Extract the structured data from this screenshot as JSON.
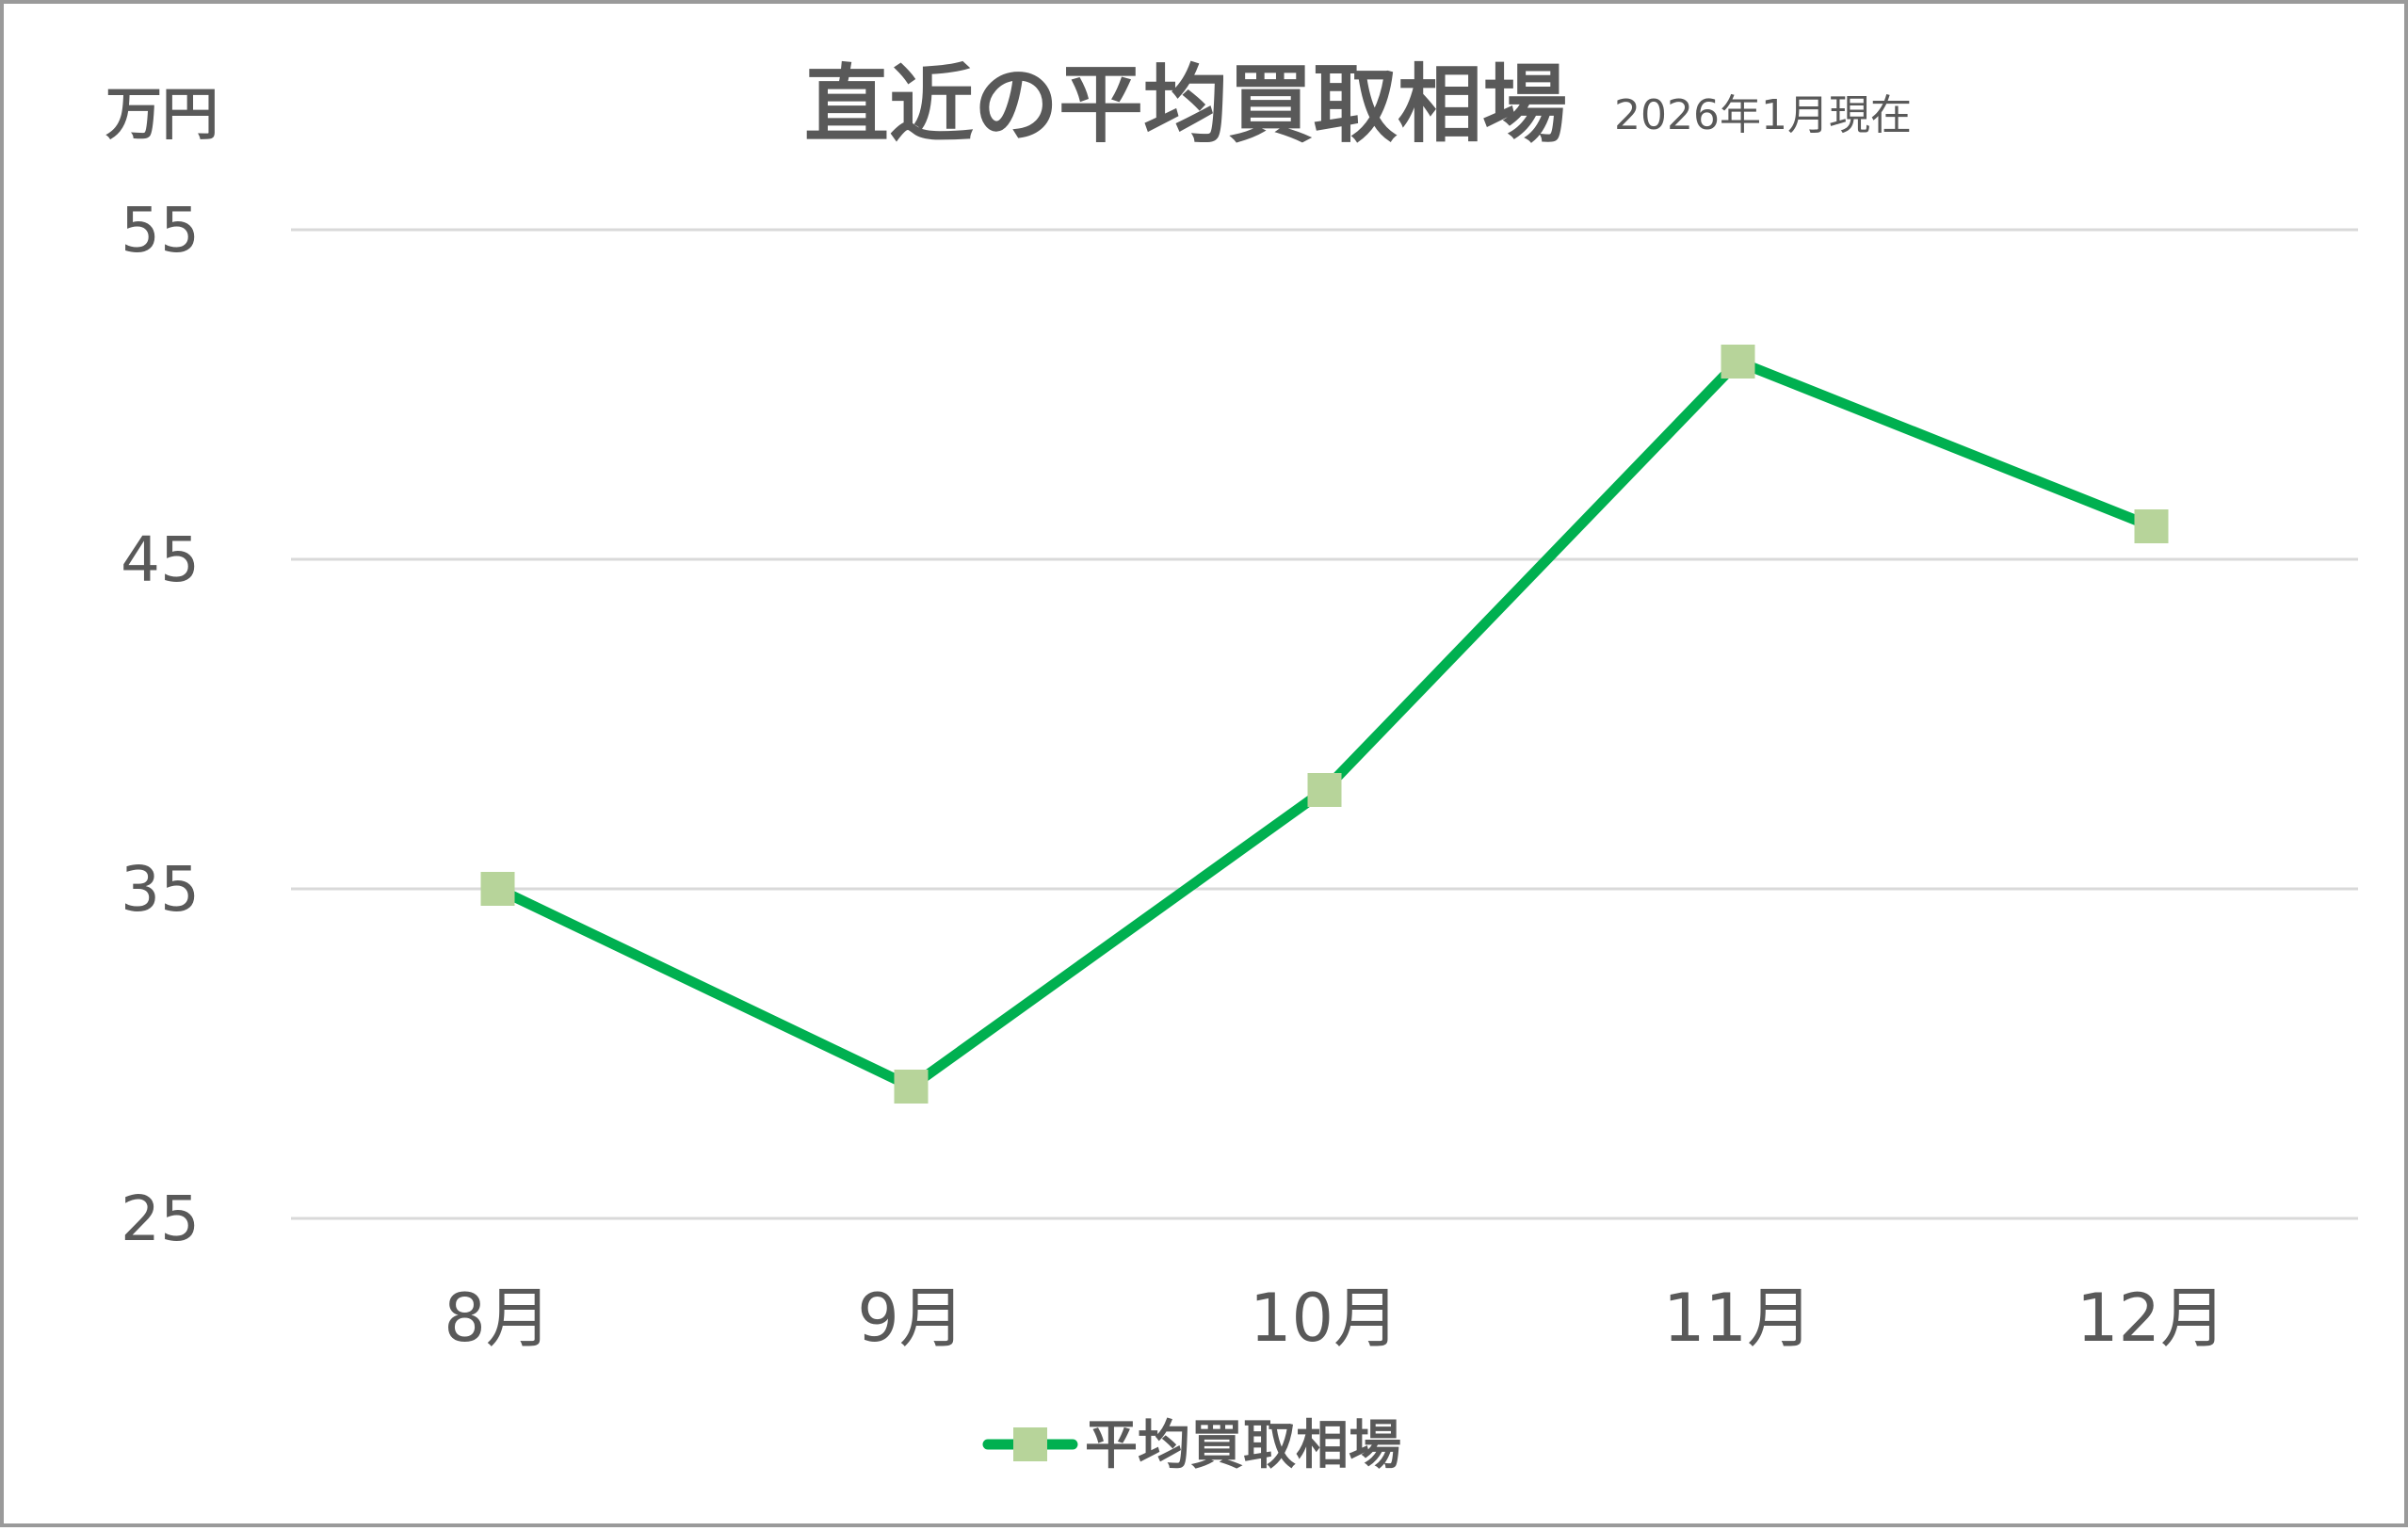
{
  "colors": {
    "line": "#00b050",
    "marker": "#b7d49a",
    "text": "#595959",
    "grid": "#d9d9d9"
  },
  "chart_data": {
    "type": "line",
    "title": "直近の平均買取相場",
    "subtitle": "2026年1月現在",
    "unit_label": "万円",
    "xlabel": "",
    "ylabel": "",
    "categories": [
      "8月",
      "9月",
      "10月",
      "11月",
      "12月"
    ],
    "series": [
      {
        "name": "平均買取相場",
        "values": [
          35,
          29,
          38,
          51,
          46
        ]
      }
    ],
    "ylim": [
      25,
      55
    ],
    "yticks": [
      "55",
      "45",
      "35",
      "25"
    ],
    "grid": true,
    "legend_position": "bottom",
    "marker": "square"
  }
}
